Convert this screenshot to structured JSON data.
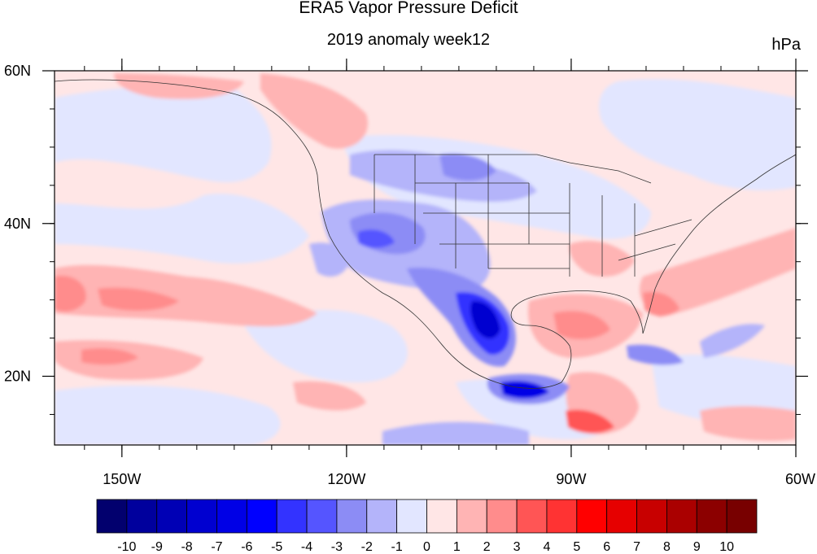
{
  "title": "ERA5 Vapor Pressure Deficit",
  "subtitle": "2019 anomaly week12",
  "units": "hPa",
  "lat_ticks": [
    {
      "label": "60N",
      "value": 60
    },
    {
      "label": "40N",
      "value": 40
    },
    {
      "label": "20N",
      "value": 20
    }
  ],
  "lon_ticks": [
    {
      "label": "150W",
      "value": -150
    },
    {
      "label": "120W",
      "value": -120
    },
    {
      "label": "90W",
      "value": -90
    },
    {
      "label": "60W",
      "value": -60
    }
  ],
  "map_extent": {
    "lon_min": -159,
    "lon_max": -60,
    "lat_min": 11,
    "lat_max": 60
  },
  "colorbar": {
    "labels": [
      "-10",
      "-9",
      "-8",
      "-7",
      "-6",
      "-5",
      "-4",
      "-3",
      "-2",
      "-1",
      "0",
      "1",
      "2",
      "3",
      "4",
      "5",
      "6",
      "7",
      "8",
      "9",
      "10"
    ],
    "colors": [
      "#02006e",
      "#00009d",
      "#0000b5",
      "#0000d0",
      "#0000e6",
      "#0000ff",
      "#3333ff",
      "#5555ff",
      "#8c8cf5",
      "#b4b4fa",
      "#e2e6ff",
      "#ffe6e6",
      "#ffb4b4",
      "#ff8c8c",
      "#ff5555",
      "#ff3333",
      "#ff0000",
      "#e60000",
      "#c80000",
      "#aa0000",
      "#8c0000",
      "#780000"
    ]
  }
}
